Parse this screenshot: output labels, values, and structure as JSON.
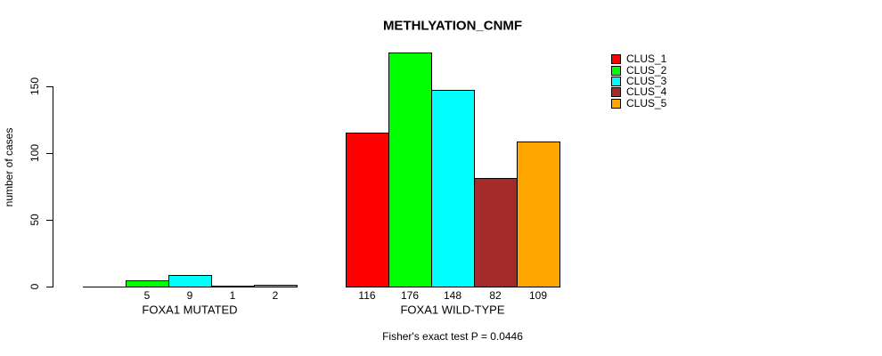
{
  "chart_data": {
    "type": "bar",
    "title": "METHLYATION_CNMF",
    "ylabel": "number of cases",
    "yticks": [
      0,
      50,
      100,
      150
    ],
    "ylim": [
      0,
      176
    ],
    "grid": false,
    "legend_position": "right",
    "background": "#FFFFFF",
    "axis_color": "#000000",
    "text_color": "#000000",
    "categories": [
      "FOXA1 MUTATED",
      "FOXA1 WILD-TYPE"
    ],
    "series": [
      {
        "name": "CLUS_1",
        "color": "#FF0000",
        "values": [
          0,
          116
        ]
      },
      {
        "name": "CLUS_2",
        "color": "#00FF00",
        "values": [
          5,
          176
        ]
      },
      {
        "name": "CLUS_3",
        "color": "#00FFFF",
        "values": [
          9,
          148
        ]
      },
      {
        "name": "CLUS_4",
        "color": "#A52A2A",
        "values": [
          1,
          82
        ]
      },
      {
        "name": "CLUS_5",
        "color": "#FFA500",
        "values": [
          2,
          109
        ]
      }
    ],
    "value_labels": [
      [
        "",
        "5",
        "9",
        "1",
        "2"
      ],
      [
        "116",
        "176",
        "148",
        "82",
        "109"
      ]
    ],
    "footnote": "Fisher's exact test P = 0.0446"
  }
}
